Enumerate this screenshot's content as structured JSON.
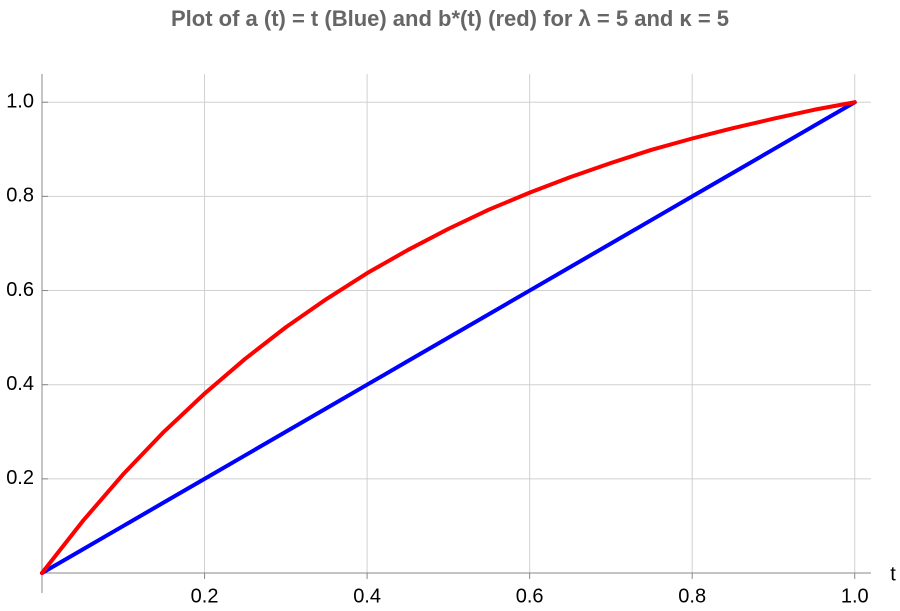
{
  "chart_data": {
    "type": "line",
    "title": "Plot of a (t) = t (Blue) and b*(t) (red) for λ = 5 and κ = 5",
    "x_label": "t",
    "x": [
      0,
      0.05,
      0.1,
      0.15,
      0.2,
      0.25,
      0.3,
      0.35,
      0.4,
      0.45,
      0.5,
      0.55,
      0.6,
      0.65,
      0.7,
      0.75,
      0.8,
      0.85,
      0.9,
      0.95,
      1
    ],
    "series": [
      {
        "color": "#0000ff",
        "values": [
          0,
          0.05,
          0.1,
          0.15,
          0.2,
          0.25,
          0.3,
          0.35,
          0.4,
          0.45,
          0.5,
          0.55,
          0.6,
          0.65,
          0.7,
          0.75,
          0.8,
          0.85,
          0.9,
          0.95,
          1
        ]
      },
      {
        "color": "#ff0000",
        "values": [
          0,
          0.11,
          0.21,
          0.3,
          0.381,
          0.455,
          0.522,
          0.582,
          0.637,
          0.686,
          0.731,
          0.772,
          0.808,
          0.841,
          0.871,
          0.899,
          0.923,
          0.945,
          0.965,
          0.984,
          1
        ]
      }
    ],
    "xlim": [
      0,
      1.02
    ],
    "ylim": [
      0,
      1.06
    ],
    "xticks": [
      0.2,
      0.4,
      0.6,
      0.8,
      {
        "value": 1,
        "label": "1.0"
      }
    ],
    "yticks": [
      0.2,
      0.4,
      0.6,
      0.8,
      {
        "value": 1,
        "label": "1.0"
      }
    ],
    "grid": true
  }
}
